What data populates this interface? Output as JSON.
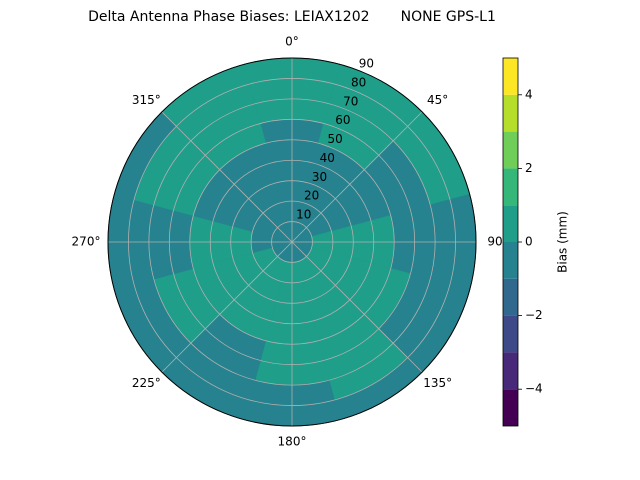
{
  "chart_data": {
    "type": "polar-contour",
    "title": "Delta Antenna Phase Biases: LEIAX1202       NONE GPS-L1",
    "theta": [
      0,
      30,
      60,
      90,
      120,
      150,
      180,
      210,
      240,
      270,
      300,
      330
    ],
    "r": [
      5,
      15,
      25,
      35,
      45,
      55,
      65,
      75,
      85
    ],
    "values": [
      [
        -0.4,
        -0.4,
        -0.3,
        -0.3,
        -0.2,
        -0.2,
        0.3,
        0.4,
        0.4
      ],
      [
        -0.4,
        -0.4,
        -0.3,
        -0.3,
        -0.2,
        0.2,
        0.3,
        0.4,
        0.4
      ],
      [
        -0.4,
        -0.3,
        -0.3,
        -0.3,
        -0.3,
        -0.2,
        -0.2,
        0.3,
        0.4
      ],
      [
        -0.3,
        0.2,
        0.3,
        0.3,
        0.2,
        -0.2,
        -0.3,
        -0.3,
        -0.4
      ],
      [
        -0.3,
        0.3,
        0.4,
        0.4,
        0.3,
        0.2,
        -0.2,
        -0.3,
        -0.3
      ],
      [
        -0.3,
        0.3,
        0.4,
        0.4,
        0.4,
        0.3,
        0.2,
        0.2,
        -0.2
      ],
      [
        -0.3,
        0.2,
        0.3,
        0.4,
        0.3,
        0.2,
        0.2,
        -0.2,
        -0.3
      ],
      [
        -0.3,
        0.2,
        0.3,
        0.3,
        0.2,
        -0.2,
        -0.3,
        -0.3,
        -0.4
      ],
      [
        -0.3,
        0.2,
        0.4,
        0.4,
        0.4,
        0.3,
        0.2,
        -0.2,
        -0.3
      ],
      [
        -0.3,
        -0.2,
        0.3,
        0.3,
        0.2,
        -0.2,
        -0.3,
        -0.3,
        -0.3
      ],
      [
        -0.4,
        -0.3,
        -0.3,
        -0.3,
        -0.2,
        0.2,
        0.3,
        0.3,
        -0.2
      ],
      [
        -0.4,
        -0.3,
        -0.3,
        -0.2,
        -0.2,
        0.2,
        0.3,
        0.4,
        0.3
      ]
    ],
    "rlim": [
      0,
      90
    ],
    "rticks": [
      10,
      20,
      30,
      40,
      50,
      60,
      70,
      80,
      90
    ],
    "thetaticks": [
      {
        "value": 0,
        "label": "0°"
      },
      {
        "value": 45,
        "label": "45°"
      },
      {
        "value": 90,
        "label": "90°"
      },
      {
        "value": 135,
        "label": "135°"
      },
      {
        "value": 180,
        "label": "180°"
      },
      {
        "value": 225,
        "label": "225°"
      },
      {
        "value": 270,
        "label": "270°"
      },
      {
        "value": 315,
        "label": "315°"
      }
    ],
    "levels": [
      -5,
      -4,
      -3,
      -2,
      -1,
      0,
      1,
      2,
      3,
      4,
      5
    ],
    "colors": [
      "#440154",
      "#482878",
      "#3e4989",
      "#31688e",
      "#26828e",
      "#1f9e89",
      "#35b779",
      "#6ece58",
      "#b5de2b",
      "#fde725"
    ],
    "clim": [
      -5,
      5
    ],
    "cticks": [
      {
        "value": -4,
        "label": "−4"
      },
      {
        "value": -2,
        "label": "−2"
      },
      0,
      2,
      4
    ],
    "colorbar_label": "Bias (mm)",
    "grid": true
  }
}
